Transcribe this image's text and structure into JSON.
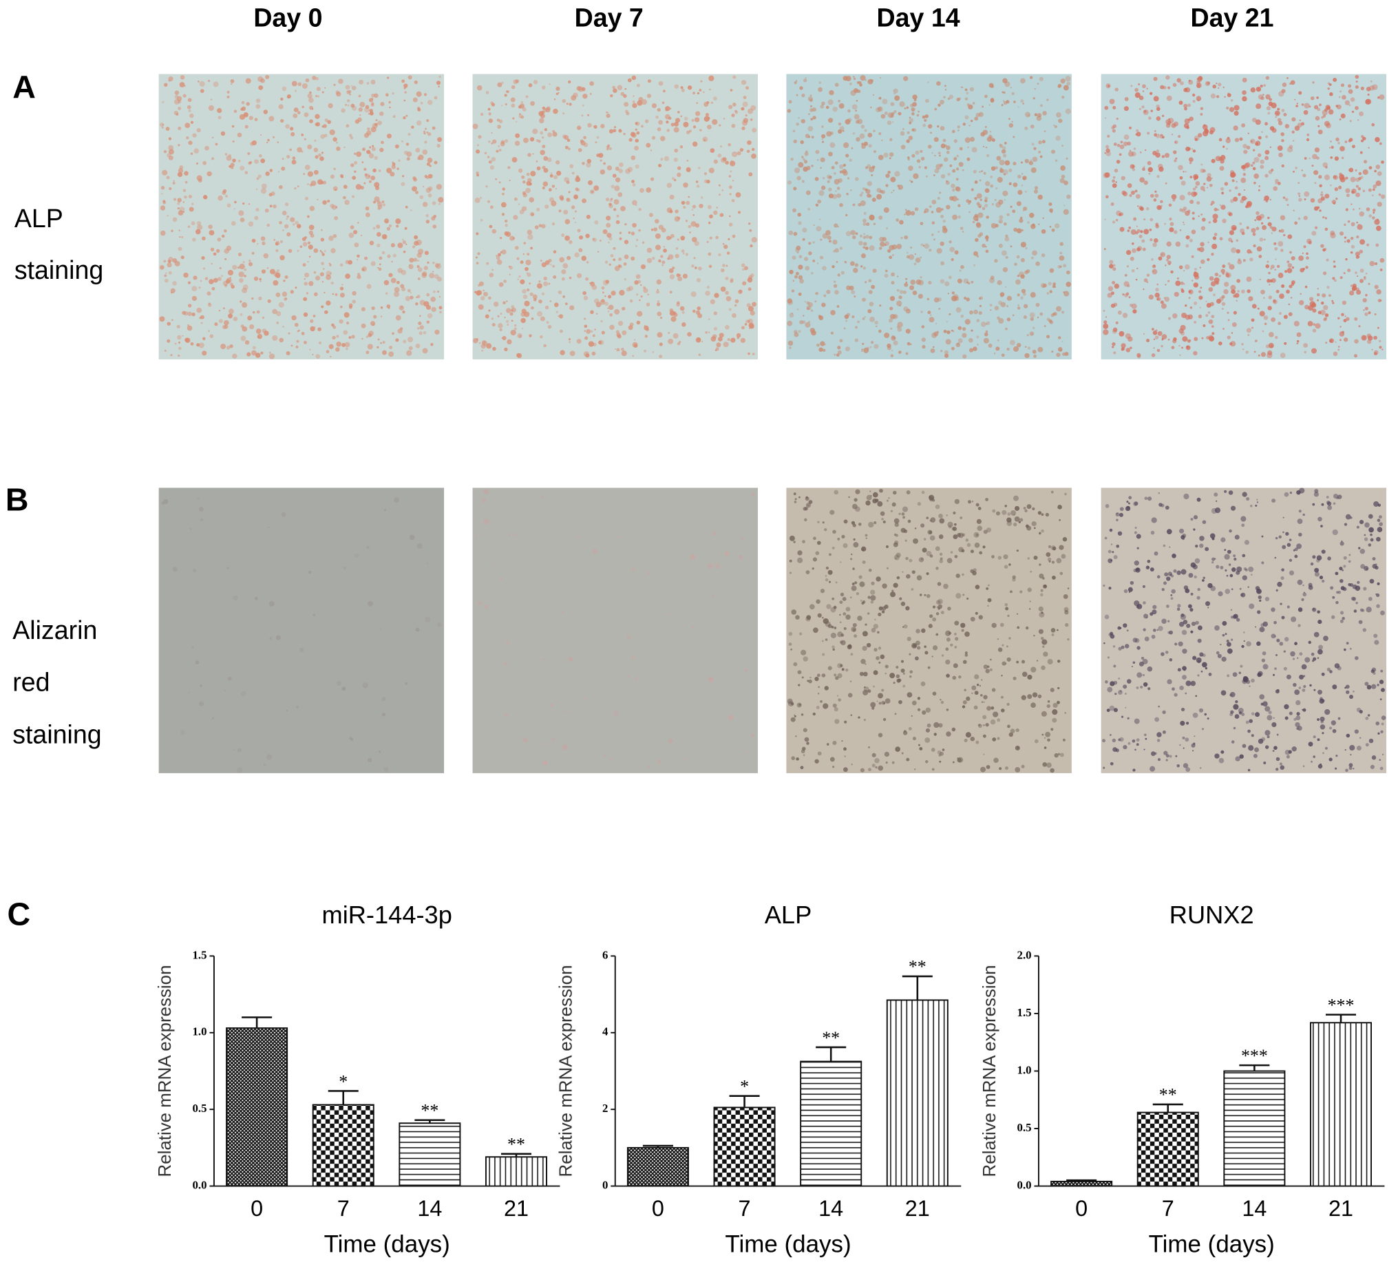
{
  "columns": [
    "Day 0",
    "Day 7",
    "Day 14",
    "Day 21"
  ],
  "panel_a": {
    "label": "A",
    "row_label": [
      "ALP",
      "staining"
    ]
  },
  "panel_b": {
    "label": "B",
    "row_label": [
      "Alizarin",
      "red",
      "staining"
    ]
  },
  "panel_c": {
    "label": "C"
  },
  "chart_data": [
    {
      "type": "bar",
      "title": "miR-144-3p",
      "x_label": "Time (days)",
      "y_label": "Relative mRNA expression",
      "categories": [
        "0",
        "7",
        "14",
        "21"
      ],
      "values": [
        1.03,
        0.53,
        0.41,
        0.19
      ],
      "errors": [
        0.07,
        0.09,
        0.02,
        0.02
      ],
      "significance": [
        null,
        "*",
        "**",
        "**"
      ],
      "ylim": [
        0,
        1.5
      ],
      "yticks": [
        {
          "value": 0,
          "label": "0.0"
        },
        0.5,
        {
          "value": 1,
          "label": "1.0"
        },
        1.5
      ]
    },
    {
      "type": "bar",
      "title": "ALP",
      "x_label": "Time (days)",
      "y_label": "Relative mRNA expression",
      "categories": [
        "0",
        "7",
        "14",
        "21"
      ],
      "values": [
        1.0,
        2.05,
        3.25,
        4.85
      ],
      "errors": [
        0.05,
        0.3,
        0.37,
        0.62
      ],
      "significance": [
        null,
        "*",
        "**",
        "**"
      ],
      "ylim": [
        0,
        6
      ],
      "yticks": [
        0,
        2,
        4,
        6
      ]
    },
    {
      "type": "bar",
      "title": "RUNX2",
      "x_label": "Time (days)",
      "y_label": "Relative mRNA expression",
      "categories": [
        "0",
        "7",
        "14",
        "21"
      ],
      "values": [
        0.04,
        0.64,
        1.0,
        1.42
      ],
      "errors": [
        0.01,
        0.07,
        0.05,
        0.07
      ],
      "significance": [
        null,
        "**",
        "***",
        "***"
      ],
      "ylim": [
        0,
        2
      ],
      "yticks": [
        {
          "value": 0,
          "label": "0.0"
        },
        0.5,
        {
          "value": 1,
          "label": "1.0"
        },
        1.5,
        {
          "value": 2,
          "label": "2.0"
        }
      ]
    }
  ]
}
